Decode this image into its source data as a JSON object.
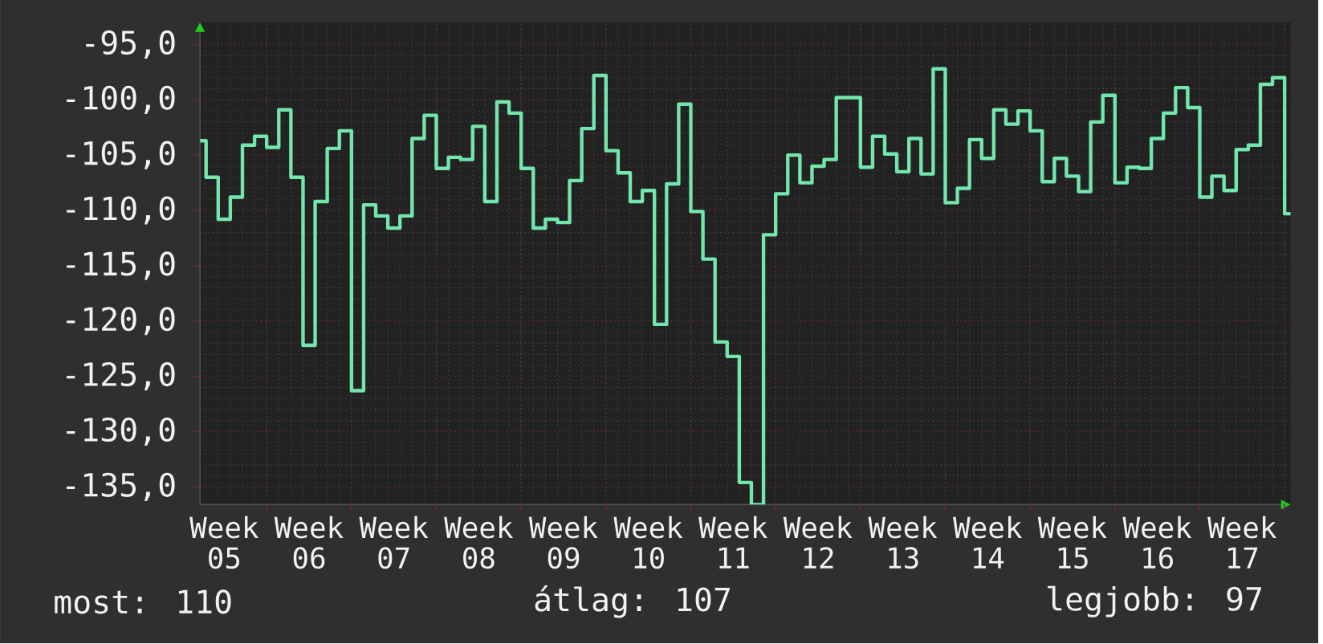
{
  "chart_data": {
    "type": "step",
    "color": "#73e6ad",
    "grid": true,
    "categories": [
      null,
      null,
      "Week 05",
      null,
      null,
      null,
      null,
      null,
      null,
      "Week 06",
      null,
      null,
      null,
      null,
      null,
      null,
      "Week 07",
      null,
      null,
      null,
      null,
      null,
      null,
      "Week 08",
      null,
      null,
      null,
      null,
      null,
      null,
      "Week 09",
      null,
      null,
      null,
      null,
      null,
      null,
      "Week 10",
      null,
      null,
      null,
      null,
      null,
      null,
      "Week 11",
      null,
      null,
      null,
      null,
      null,
      null,
      "Week 12",
      null,
      null,
      null,
      null,
      null,
      null,
      "Week 13",
      null,
      null,
      null,
      null,
      null,
      null,
      "Week 14",
      null,
      null,
      null,
      null,
      null,
      null,
      "Week 15",
      null,
      null,
      null,
      null,
      null,
      null,
      "Week 16",
      null,
      null,
      null,
      null,
      null,
      null,
      "Week 17",
      null,
      null,
      null,
      null
    ],
    "values": [
      -103.7,
      -107.0,
      -110.8,
      -108.8,
      -104.1,
      -103.3,
      -104.3,
      -100.9,
      -107.0,
      -122.2,
      -109.2,
      -104.4,
      -102.8,
      -126.3,
      -109.5,
      -110.5,
      -111.6,
      -110.5,
      -103.5,
      -101.4,
      -106.2,
      -105.2,
      -105.4,
      -102.4,
      -109.2,
      -100.2,
      -101.2,
      -106.2,
      -111.6,
      -110.8,
      -111.1,
      -107.3,
      -102.6,
      -97.8,
      -104.6,
      -106.6,
      -109.2,
      -108.2,
      -120.3,
      -107.6,
      -100.4,
      -110.1,
      -114.4,
      -121.9,
      -123.2,
      -134.6,
      -136.6,
      -112.2,
      -108.5,
      -105.0,
      -107.5,
      -106.0,
      -105.4,
      -99.8,
      -99.8,
      -106.1,
      -103.3,
      -104.9,
      -106.5,
      -103.5,
      -106.7,
      -97.2,
      -109.3,
      -108.0,
      -103.6,
      -105.3,
      -100.9,
      -102.2,
      -101.0,
      -102.8,
      -107.4,
      -105.3,
      -106.9,
      -108.3,
      -102.0,
      -99.6,
      -107.5,
      -106.1,
      -106.2,
      -103.5,
      -101.2,
      -98.9,
      -100.7,
      -108.8,
      -106.9,
      -108.2,
      -104.5,
      -104.1,
      -98.6,
      -98.0,
      -110.3
    ],
    "ylim": [
      -136.6,
      -93
    ],
    "yticks": [
      {
        "value": -135,
        "label": "-135,0"
      },
      {
        "value": -130,
        "label": "-130,0"
      },
      {
        "value": -125,
        "label": "-125,0"
      },
      {
        "value": -120,
        "label": "-120,0"
      },
      {
        "value": -115,
        "label": "-115,0"
      },
      {
        "value": -110,
        "label": "-110,0"
      },
      {
        "value": -105,
        "label": "-105,0"
      },
      {
        "value": -100,
        "label": "-100,0"
      },
      {
        "value": -95,
        "label": "-95,0"
      }
    ],
    "annotations": [
      "most: 110",
      "átlag: 107",
      "legjobb: 97"
    ]
  }
}
